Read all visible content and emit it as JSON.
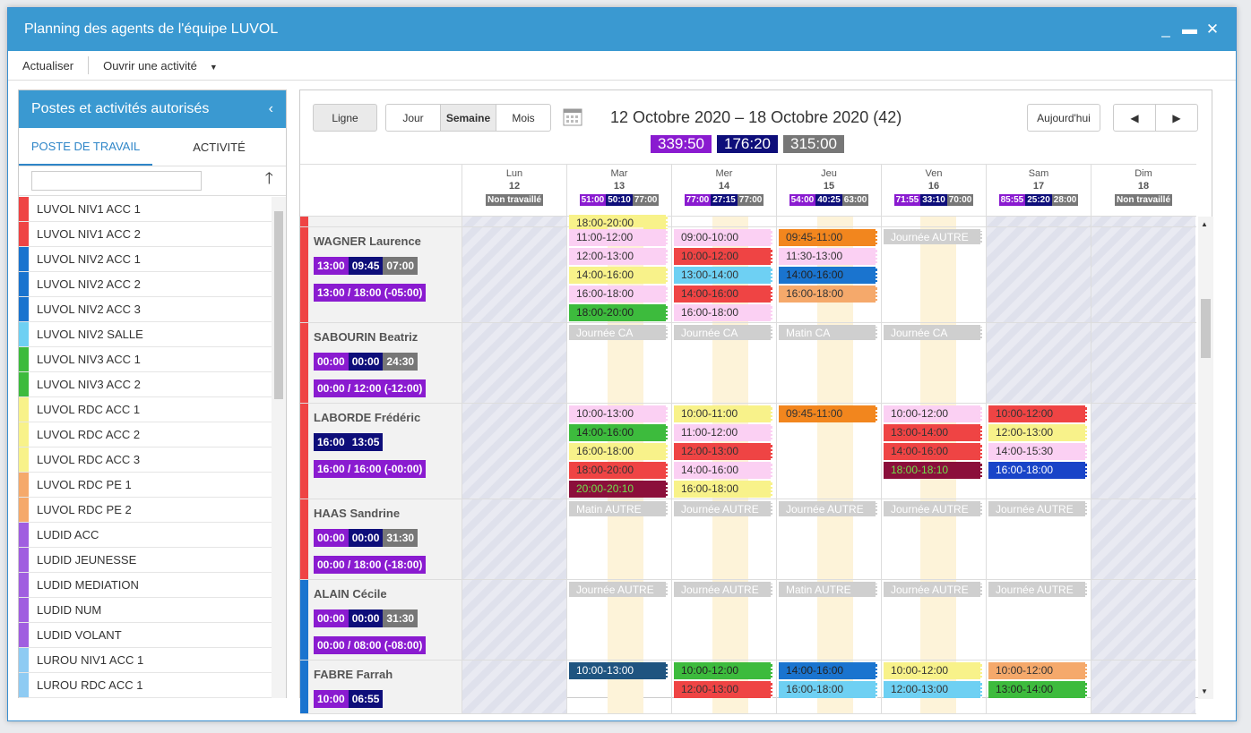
{
  "window": {
    "title": "Planning des agents de l'équipe LUVOL"
  },
  "menu": {
    "refresh": "Actualiser",
    "open_activity": "Ouvrir une activité"
  },
  "left": {
    "title": "Postes et activités autorisés",
    "tabs": [
      "POSTE DE TRAVAIL",
      "ACTIVITÉ"
    ],
    "items": [
      {
        "label": "LUVOL NIV1 ACC 1",
        "color": "#ef4444"
      },
      {
        "label": "LUVOL NIV1 ACC 2",
        "color": "#ef4444"
      },
      {
        "label": "LUVOL NIV2 ACC 1",
        "color": "#1a74cf"
      },
      {
        "label": "LUVOL NIV2 ACC 2",
        "color": "#1a74cf"
      },
      {
        "label": "LUVOL NIV2 ACC 3",
        "color": "#1a74cf"
      },
      {
        "label": "LUVOL NIV2 SALLE",
        "color": "#6ed0f3"
      },
      {
        "label": "LUVOL NIV3 ACC 1",
        "color": "#3dbb3d"
      },
      {
        "label": "LUVOL NIV3 ACC 2",
        "color": "#3dbb3d"
      },
      {
        "label": "LUVOL RDC ACC 1",
        "color": "#f8f28a"
      },
      {
        "label": "LUVOL RDC ACC 2",
        "color": "#f8f28a"
      },
      {
        "label": "LUVOL RDC ACC 3",
        "color": "#f8f28a"
      },
      {
        "label": "LUVOL RDC PE 1",
        "color": "#f5a96b"
      },
      {
        "label": "LUVOL RDC PE 2",
        "color": "#f5a96b"
      },
      {
        "label": "LUDID ACC",
        "color": "#a05ee0"
      },
      {
        "label": "LUDID JEUNESSE",
        "color": "#a05ee0"
      },
      {
        "label": "LUDID MEDIATION",
        "color": "#a05ee0"
      },
      {
        "label": "LUDID NUM",
        "color": "#a05ee0"
      },
      {
        "label": "LUDID VOLANT",
        "color": "#a05ee0"
      },
      {
        "label": "LUROU NIV1 ACC 1",
        "color": "#8ecbf3"
      },
      {
        "label": "LUROU RDC ACC 1",
        "color": "#8ecbf3"
      }
    ]
  },
  "toolbar": {
    "line": "Ligne",
    "day": "Jour",
    "week": "Semaine",
    "month": "Mois",
    "today": "Aujourd'hui",
    "prev": "◀",
    "next": "▶"
  },
  "range": "12 Octobre 2020 – 18 Octobre 2020 (42)",
  "totals": [
    "339:50",
    "176:20",
    "315:00"
  ],
  "days": [
    {
      "name": "Lun",
      "num": "12",
      "chips": [
        [
          "Non travaillé",
          "#777"
        ]
      ]
    },
    {
      "name": "Mar",
      "num": "13",
      "chips": [
        [
          "51:00",
          "#8a1bd0"
        ],
        [
          "50:10",
          "#0e0e7a"
        ],
        [
          "77:00",
          "#777"
        ]
      ]
    },
    {
      "name": "Mer",
      "num": "14",
      "chips": [
        [
          "77:00",
          "#8a1bd0"
        ],
        [
          "27:15",
          "#0e0e7a"
        ],
        [
          "77:00",
          "#777"
        ]
      ]
    },
    {
      "name": "Jeu",
      "num": "15",
      "chips": [
        [
          "54:00",
          "#8a1bd0"
        ],
        [
          "40:25",
          "#0e0e7a"
        ],
        [
          "63:00",
          "#777"
        ]
      ]
    },
    {
      "name": "Ven",
      "num": "16",
      "chips": [
        [
          "71:55",
          "#8a1bd0"
        ],
        [
          "33:10",
          "#0e0e7a"
        ],
        [
          "70:00",
          "#777"
        ]
      ]
    },
    {
      "name": "Sam",
      "num": "17",
      "chips": [
        [
          "85:55",
          "#8a1bd0"
        ],
        [
          "25:20",
          "#0e0e7a"
        ],
        [
          "28:00",
          "#777"
        ]
      ]
    },
    {
      "name": "Dim",
      "num": "18",
      "chips": [
        [
          "Non travaillé",
          "#777"
        ]
      ]
    }
  ],
  "rows": [
    {
      "name": "",
      "color": "#ef4444",
      "h": 12,
      "pill": [],
      "range": "",
      "ev": [
        [
          1,
          "18:00-20:00",
          "#f8f28a",
          "#333"
        ]
      ]
    },
    {
      "name": "WAGNER Laurence",
      "color": "#ef4444",
      "h": 107,
      "pill": [
        [
          "13:00",
          "#8a1bd0"
        ],
        [
          "09:45",
          "#0e0e7a"
        ],
        [
          "07:00",
          "#777"
        ]
      ],
      "range": "13:00 / 18:00 (-05:00)",
      "ev": [
        [
          1,
          "11:00-12:00",
          "#fbd0f3",
          "#333"
        ],
        [
          1,
          "12:00-13:00",
          "#fbd0f3",
          "#333"
        ],
        [
          1,
          "14:00-16:00",
          "#f8f28a",
          "#333"
        ],
        [
          1,
          "16:00-18:00",
          "#fbd0f3",
          "#333"
        ],
        [
          1,
          "18:00-20:00",
          "#3dbb3d",
          "#222"
        ],
        [
          2,
          "09:00-10:00",
          "#fbd0f3",
          "#333"
        ],
        [
          2,
          "10:00-12:00",
          "#ef4444",
          "#333"
        ],
        [
          2,
          "13:00-14:00",
          "#6ed0f3",
          "#333"
        ],
        [
          2,
          "14:00-16:00",
          "#ef4444",
          "#333"
        ],
        [
          2,
          "16:00-18:00",
          "#fbd0f3",
          "#333"
        ],
        [
          3,
          "09:45-11:00",
          "#f2861e",
          "#333"
        ],
        [
          3,
          "11:30-13:00",
          "#fbd0f3",
          "#333"
        ],
        [
          3,
          "14:00-16:00",
          "#1a74cf",
          "#222"
        ],
        [
          3,
          "16:00-18:00",
          "#f5a96b",
          "#333"
        ],
        [
          4,
          "Journée  AUTRE",
          "#cfcfcf",
          "#fff"
        ]
      ]
    },
    {
      "name": "SABOURIN Beatriz",
      "color": "#ef4444",
      "h": 90,
      "pill": [
        [
          "00:00",
          "#8a1bd0"
        ],
        [
          "00:00",
          "#0e0e7a"
        ],
        [
          "24:30",
          "#777"
        ]
      ],
      "range": "00:00 / 12:00 (-12:00)",
      "ev": [
        [
          1,
          "Journée  CA",
          "#cfcfcf",
          "#fff"
        ],
        [
          2,
          "Journée  CA",
          "#cfcfcf",
          "#fff"
        ],
        [
          3,
          "Matin  CA",
          "#cfcfcf",
          "#fff"
        ],
        [
          4,
          "Journée  CA",
          "#cfcfcf",
          "#fff"
        ]
      ]
    },
    {
      "name": "LABORDE Frédéric",
      "color": "#ef4444",
      "h": 107,
      "pill": [
        [
          "16:00",
          "#0e0e7a"
        ],
        [
          "13:05",
          "#0e0e7a"
        ]
      ],
      "range": "16:00 / 16:00 (-00:00)",
      "ev": [
        [
          1,
          "10:00-13:00",
          "#fbd0f3",
          "#333"
        ],
        [
          1,
          "14:00-16:00",
          "#3dbb3d",
          "#222"
        ],
        [
          1,
          "16:00-18:00",
          "#f8f28a",
          "#333"
        ],
        [
          1,
          "18:00-20:00",
          "#ef4444",
          "#333"
        ],
        [
          1,
          "20:00-20:10",
          "#8b0f3b",
          "#6fe04a"
        ],
        [
          2,
          "10:00-11:00",
          "#f8f28a",
          "#333"
        ],
        [
          2,
          "11:00-12:00",
          "#fbd0f3",
          "#333"
        ],
        [
          2,
          "12:00-13:00",
          "#ef4444",
          "#333"
        ],
        [
          2,
          "14:00-16:00",
          "#fbd0f3",
          "#333"
        ],
        [
          2,
          "16:00-18:00",
          "#f8f28a",
          "#333"
        ],
        [
          3,
          "09:45-11:00",
          "#f2861e",
          "#333"
        ],
        [
          4,
          "10:00-12:00",
          "#fbd0f3",
          "#333"
        ],
        [
          4,
          "13:00-14:00",
          "#ef4444",
          "#333"
        ],
        [
          4,
          "14:00-16:00",
          "#ef4444",
          "#333"
        ],
        [
          4,
          "18:00-18:10",
          "#8b0f3b",
          "#6fe04a"
        ],
        [
          5,
          "10:00-12:00",
          "#ef4444",
          "#333"
        ],
        [
          5,
          "12:00-13:00",
          "#f8f28a",
          "#333"
        ],
        [
          5,
          "14:00-15:30",
          "#fbd0f3",
          "#333"
        ],
        [
          5,
          "16:00-18:00",
          "#1944c8",
          "#fff"
        ]
      ]
    },
    {
      "name": "HAAS Sandrine",
      "color": "#ef4444",
      "h": 90,
      "pill": [
        [
          "00:00",
          "#8a1bd0"
        ],
        [
          "00:00",
          "#0e0e7a"
        ],
        [
          "31:30",
          "#777"
        ]
      ],
      "range": "00:00 / 18:00 (-18:00)",
      "ev": [
        [
          1,
          "Matin  AUTRE",
          "#cfcfcf",
          "#fff"
        ],
        [
          2,
          "Journée  AUTRE",
          "#cfcfcf",
          "#fff"
        ],
        [
          3,
          "Journée  AUTRE",
          "#cfcfcf",
          "#fff"
        ],
        [
          4,
          "Journée  AUTRE",
          "#cfcfcf",
          "#fff"
        ],
        [
          5,
          "Journée  AUTRE",
          "#cfcfcf",
          "#fff"
        ]
      ]
    },
    {
      "name": "ALAIN Cécile",
      "color": "#1a74cf",
      "h": 90,
      "pill": [
        [
          "00:00",
          "#8a1bd0"
        ],
        [
          "00:00",
          "#0e0e7a"
        ],
        [
          "31:30",
          "#777"
        ]
      ],
      "range": "00:00 / 08:00 (-08:00)",
      "ev": [
        [
          1,
          "Journée  AUTRE",
          "#cfcfcf",
          "#fff"
        ],
        [
          2,
          "Journée  AUTRE",
          "#cfcfcf",
          "#fff"
        ],
        [
          3,
          "Matin  AUTRE",
          "#cfcfcf",
          "#fff"
        ],
        [
          4,
          "Journée  AUTRE",
          "#cfcfcf",
          "#fff"
        ],
        [
          5,
          "Journée  AUTRE",
          "#cfcfcf",
          "#fff"
        ]
      ]
    },
    {
      "name": "FABRE Farrah",
      "color": "#1a74cf",
      "h": 60,
      "pill": [
        [
          "10:00",
          "#8a1bd0"
        ],
        [
          "06:55",
          "#0e0e7a"
        ]
      ],
      "range": "",
      "ev": [
        [
          1,
          "10:00-13:00",
          "#1f5480",
          "#fff"
        ],
        [
          2,
          "10:00-12:00",
          "#3dbb3d",
          "#222"
        ],
        [
          2,
          "12:00-13:00",
          "#ef4444",
          "#333"
        ],
        [
          3,
          "14:00-16:00",
          "#1a74cf",
          "#222"
        ],
        [
          3,
          "16:00-18:00",
          "#6ed0f3",
          "#333"
        ],
        [
          4,
          "10:00-12:00",
          "#f8f28a",
          "#333"
        ],
        [
          4,
          "12:00-13:00",
          "#6ed0f3",
          "#333"
        ],
        [
          5,
          "10:00-12:00",
          "#f5a96b",
          "#333"
        ],
        [
          5,
          "13:00-14:00",
          "#3dbb3d",
          "#222"
        ]
      ]
    }
  ]
}
